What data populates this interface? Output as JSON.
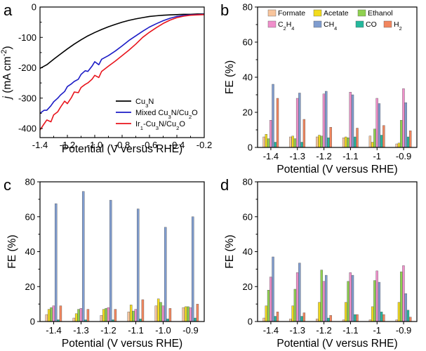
{
  "panel_letters": [
    "a",
    "b",
    "c",
    "d"
  ],
  "chart_data": [
    {
      "panel": "a",
      "type": "line",
      "xlabel": "Potential (V versus RHE)",
      "ylabel_main": "j",
      "ylabel_unit": "(mA cm",
      "ylabel_sup": "-2",
      "ylabel_close": ")",
      "xlim": [
        -1.4,
        -0.2
      ],
      "ylim": [
        -430,
        0
      ],
      "xticks": [
        -1.4,
        -1.2,
        -1.0,
        -0.8,
        -0.6,
        -0.4,
        -0.2
      ],
      "xtick_labels": [
        "-1.4",
        "-1.2",
        "-1.0",
        "-0.8",
        "-0.6",
        "-0.4",
        "-0.2"
      ],
      "yticks": [
        0,
        -100,
        -200,
        -300,
        -400
      ],
      "ytick_labels": [
        "0",
        "-100",
        "-200",
        "-300",
        "-400"
      ],
      "series": [
        {
          "name": "Cu3N",
          "legend": [
            "Cu",
            "3",
            "N"
          ],
          "color": "#000000",
          "x": [
            -1.4,
            -1.35,
            -1.3,
            -1.25,
            -1.2,
            -1.15,
            -1.1,
            -1.05,
            -1.0,
            -0.95,
            -0.9,
            -0.85,
            -0.8,
            -0.75,
            -0.7,
            -0.65,
            -0.6,
            -0.55,
            -0.5,
            -0.45,
            -0.4,
            -0.35,
            -0.3,
            -0.25,
            -0.2
          ],
          "y": [
            -202,
            -190,
            -172,
            -155,
            -138,
            -122,
            -108,
            -95,
            -84,
            -74,
            -65,
            -57,
            -50,
            -44,
            -39,
            -35,
            -31,
            -29,
            -27,
            -26,
            -25,
            -24,
            -24,
            -23,
            -23
          ]
        },
        {
          "name": "Mixed Cu3N/Cu2O",
          "legend": [
            "Mixed Cu",
            "3",
            "N/Cu",
            "2",
            "O"
          ],
          "color": "#1c1cc6",
          "x": [
            -1.4,
            -1.37,
            -1.35,
            -1.32,
            -1.3,
            -1.27,
            -1.25,
            -1.22,
            -1.2,
            -1.17,
            -1.15,
            -1.12,
            -1.1,
            -1.07,
            -1.05,
            -1.02,
            -1.0,
            -0.97,
            -0.95,
            -0.9,
            -0.85,
            -0.8,
            -0.75,
            -0.7,
            -0.65,
            -0.6,
            -0.55,
            -0.5,
            -0.45,
            -0.4,
            -0.35,
            -0.3,
            -0.25,
            -0.2
          ],
          "y": [
            -350,
            -340,
            -340,
            -325,
            -312,
            -300,
            -290,
            -278,
            -262,
            -253,
            -245,
            -238,
            -222,
            -210,
            -212,
            -195,
            -180,
            -190,
            -172,
            -160,
            -145,
            -128,
            -110,
            -95,
            -80,
            -66,
            -55,
            -45,
            -37,
            -31,
            -28,
            -26,
            -25,
            -24
          ]
        },
        {
          "name": "Ir1-Cu3N/Cu2O",
          "legend": [
            "Ir",
            "1",
            "-Cu",
            "3",
            "N/Cu",
            "2",
            "O"
          ],
          "color": "#e8141c",
          "x": [
            -1.4,
            -1.37,
            -1.35,
            -1.32,
            -1.3,
            -1.27,
            -1.25,
            -1.22,
            -1.2,
            -1.17,
            -1.15,
            -1.12,
            -1.1,
            -1.07,
            -1.05,
            -1.02,
            -1.0,
            -0.97,
            -0.95,
            -0.9,
            -0.85,
            -0.8,
            -0.75,
            -0.7,
            -0.65,
            -0.6,
            -0.55,
            -0.5,
            -0.45,
            -0.4,
            -0.35,
            -0.3,
            -0.25,
            -0.2
          ],
          "y": [
            -405,
            -385,
            -372,
            -378,
            -355,
            -345,
            -330,
            -310,
            -318,
            -298,
            -280,
            -282,
            -265,
            -255,
            -250,
            -238,
            -225,
            -232,
            -212,
            -195,
            -178,
            -160,
            -142,
            -122,
            -100,
            -83,
            -68,
            -54,
            -43,
            -35,
            -30,
            -27,
            -26,
            -25
          ]
        }
      ]
    },
    {
      "panel": "b",
      "type": "bar",
      "xlabel": "Potential (V versus RHE)",
      "ylabel": "FE (%)",
      "ylim": [
        0,
        80
      ],
      "yticks": [
        0,
        20,
        40,
        60,
        80
      ],
      "categories": [
        "-1.4",
        "-1.3",
        "-1.2",
        "-1.1",
        "-1",
        "-0.9"
      ],
      "series": [
        {
          "name": "Formate",
          "values": [
            6,
            6,
            6,
            5.5,
            6.5,
            2
          ]
        },
        {
          "name": "Acetate",
          "values": [
            7.5,
            6.5,
            7,
            6,
            3,
            2.5
          ]
        },
        {
          "name": "Ethanol",
          "values": [
            5,
            5,
            6.5,
            5.5,
            10.5,
            15.5
          ]
        },
        {
          "name": "C2H4",
          "values": [
            15.5,
            28,
            30.5,
            31.5,
            28,
            33.5
          ]
        },
        {
          "name": "CH4",
          "values": [
            36,
            31,
            32,
            30,
            25,
            25.5
          ]
        },
        {
          "name": "CO",
          "values": [
            3,
            3,
            5.5,
            6,
            7,
            6
          ]
        },
        {
          "name": "H2",
          "values": [
            28,
            16,
            11.5,
            11,
            12.5,
            9.5
          ]
        }
      ]
    },
    {
      "panel": "c",
      "type": "bar",
      "xlabel": "Potential (V versus RHE)",
      "ylabel": "FE (%)",
      "ylim": [
        0,
        80
      ],
      "yticks": [
        0,
        20,
        40,
        60,
        80
      ],
      "categories": [
        "-1.4",
        "-1.3",
        "-1.2",
        "-1.1",
        "-1.0",
        "-0.9"
      ],
      "series": [
        {
          "name": "Formate",
          "values": [
            4,
            2,
            3.5,
            5.5,
            9,
            8
          ]
        },
        {
          "name": "Acetate",
          "values": [
            7,
            4.5,
            7,
            9.5,
            13,
            8.5
          ]
        },
        {
          "name": "Ethanol",
          "values": [
            8,
            7,
            7.5,
            6,
            11,
            8.5
          ]
        },
        {
          "name": "C2H4",
          "values": [
            9,
            7.5,
            8,
            7,
            9,
            8
          ]
        },
        {
          "name": "CH4",
          "values": [
            67.5,
            74.5,
            69.5,
            64.5,
            54,
            60
          ]
        },
        {
          "name": "CO",
          "values": [
            1,
            1,
            1,
            1.5,
            1.5,
            2
          ]
        },
        {
          "name": "H2",
          "values": [
            9,
            7,
            7,
            12.5,
            7.5,
            10
          ]
        }
      ]
    },
    {
      "panel": "d",
      "type": "bar",
      "xlabel": "Potential (V versus RHE)",
      "ylabel": "FE (%)",
      "ylim": [
        0,
        80
      ],
      "yticks": [
        0,
        20,
        40,
        60,
        80
      ],
      "categories": [
        "-1.4",
        "-1.3",
        "-1.2",
        "-1.1",
        "-1",
        "-0.9"
      ],
      "series": [
        {
          "name": "Formate",
          "values": [
            2,
            1.5,
            1.5,
            1,
            1,
            1
          ]
        },
        {
          "name": "Acetate",
          "values": [
            9,
            9,
            11,
            11,
            8.5,
            11
          ]
        },
        {
          "name": "Ethanol",
          "values": [
            18,
            18.5,
            29.5,
            23,
            23.5,
            28.5
          ]
        },
        {
          "name": "C2H4",
          "values": [
            25.5,
            28,
            23,
            28,
            29,
            32
          ]
        },
        {
          "name": "CH4",
          "values": [
            37,
            33.5,
            26.5,
            26.5,
            22.5,
            16
          ]
        },
        {
          "name": "CO",
          "values": [
            3,
            3,
            2,
            4,
            5.5,
            6.5
          ]
        },
        {
          "name": "H2",
          "values": [
            5.5,
            5,
            3.5,
            4,
            4,
            2.5
          ]
        }
      ]
    }
  ],
  "bar_legend": [
    {
      "name": "Formate",
      "label": [
        "Formate"
      ],
      "color": "#f8c59c"
    },
    {
      "name": "Acetate",
      "label": [
        "Acetate"
      ],
      "color": "#f2dc1c"
    },
    {
      "name": "Ethanol",
      "label": [
        "Ethanol"
      ],
      "color": "#8fd150"
    },
    {
      "name": "C2H4",
      "label": [
        "C",
        "2",
        "H",
        "4"
      ],
      "color": "#f08fcb"
    },
    {
      "name": "CH4",
      "label": [
        "CH",
        "4"
      ],
      "color": "#7f9ccf"
    },
    {
      "name": "CO",
      "label": [
        "CO"
      ],
      "color": "#24b89c"
    },
    {
      "name": "H2",
      "label": [
        "H",
        "2"
      ],
      "color": "#f2865e"
    }
  ]
}
